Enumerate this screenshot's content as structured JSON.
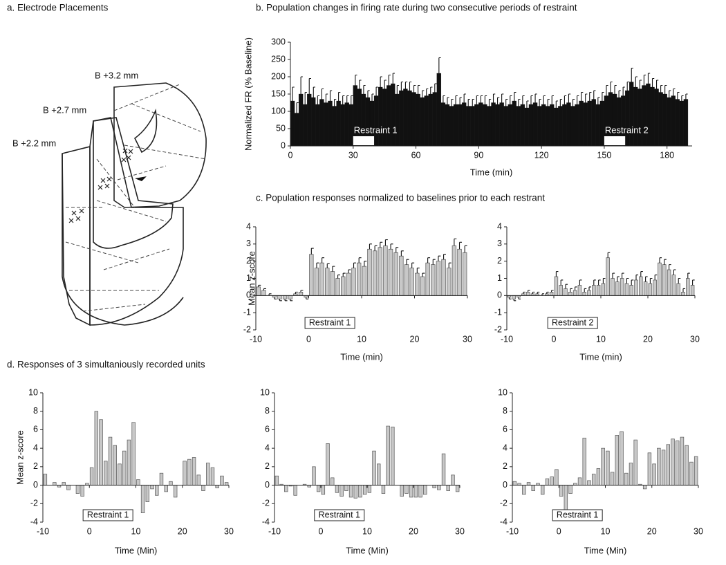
{
  "diagram": {
    "title": "a.  Electrode Placements",
    "labels": [
      "B +3.2 mm",
      "B +2.7 mm",
      "B +2.2 mm"
    ]
  },
  "chart_data": [
    {
      "type": "histogram",
      "title": "b.  Population changes in firing rate during two consecutive periods of restraint",
      "xlabel": "Time (min)",
      "ylabel": "Normalized FR (% Baseline)",
      "color": "#111111",
      "bins": [
        0,
        2,
        4,
        6,
        8,
        10,
        12,
        14,
        16,
        18,
        20,
        22,
        24,
        26,
        28,
        30,
        32,
        34,
        36,
        38,
        40,
        42,
        44,
        46,
        48,
        50,
        52,
        54,
        56,
        58,
        60,
        62,
        64,
        66,
        68,
        70,
        72,
        74,
        76,
        78,
        80,
        82,
        84,
        86,
        88,
        90,
        92,
        94,
        96,
        98,
        100,
        102,
        104,
        106,
        108,
        110,
        112,
        114,
        116,
        118,
        120,
        122,
        124,
        126,
        128,
        130,
        132,
        134,
        136,
        138,
        140,
        142,
        144,
        146,
        148,
        150,
        152,
        154,
        156,
        158,
        160,
        162,
        164,
        166,
        168,
        170,
        172,
        174,
        176,
        178,
        180,
        182,
        184,
        186,
        188,
        190
      ],
      "values": [
        130,
        95,
        150,
        120,
        150,
        140,
        120,
        135,
        125,
        130,
        115,
        130,
        120,
        125,
        120,
        175,
        165,
        150,
        140,
        130,
        145,
        170,
        165,
        175,
        180,
        150,
        160,
        165,
        160,
        155,
        150,
        140,
        145,
        150,
        155,
        210,
        125,
        120,
        115,
        120,
        120,
        125,
        115,
        115,
        120,
        125,
        120,
        115,
        125,
        120,
        125,
        115,
        120,
        130,
        115,
        120,
        110,
        120,
        125,
        115,
        120,
        115,
        120,
        110,
        115,
        120,
        125,
        115,
        120,
        130,
        125,
        130,
        135,
        120,
        130,
        145,
        155,
        150,
        140,
        145,
        160,
        185,
        170,
        165,
        175,
        180,
        170,
        165,
        155,
        150,
        140,
        145,
        135,
        130,
        135
      ],
      "errors": [
        40,
        30,
        50,
        35,
        45,
        30,
        25,
        30,
        25,
        30,
        20,
        25,
        25,
        20,
        25,
        30,
        25,
        25,
        20,
        20,
        25,
        30,
        25,
        30,
        30,
        25,
        25,
        20,
        25,
        20,
        25,
        20,
        20,
        20,
        25,
        45,
        20,
        20,
        20,
        25,
        20,
        25,
        20,
        20,
        25,
        20,
        25,
        20,
        25,
        20,
        25,
        20,
        25,
        25,
        20,
        25,
        20,
        25,
        25,
        20,
        25,
        20,
        25,
        20,
        20,
        25,
        25,
        20,
        25,
        25,
        25,
        25,
        25,
        20,
        25,
        30,
        30,
        25,
        20,
        25,
        25,
        40,
        30,
        25,
        30,
        30,
        25,
        25,
        20,
        25,
        20,
        20,
        20,
        15,
        15
      ],
      "annotations": [
        {
          "label": "Restraint 1",
          "span": [
            30,
            40
          ]
        },
        {
          "label": "Restraint 2",
          "span": [
            150,
            160
          ]
        }
      ],
      "xlim": [
        0,
        192
      ],
      "xticks": [
        0,
        30,
        60,
        90,
        120,
        150,
        180
      ],
      "ylim": [
        0,
        300
      ],
      "yticks": [
        0,
        50,
        100,
        150,
        200,
        250,
        300
      ]
    },
    {
      "type": "histogram",
      "title": "c.  Population responses normalized to baselines prior to each restrant",
      "xlabel": "Time (min)",
      "ylabel": "Mean z-score",
      "color": "#c8c8c8",
      "annotation": "Restraint 1",
      "bins": [
        -10,
        -9,
        -8,
        -7,
        -6,
        -5,
        -4,
        -3,
        -2,
        -1,
        0,
        1,
        2,
        3,
        4,
        5,
        6,
        7,
        8,
        9,
        10,
        11,
        12,
        13,
        14,
        15,
        16,
        17,
        18,
        19,
        20,
        21,
        22,
        23,
        24,
        25,
        26,
        27,
        28,
        29,
        30
      ],
      "values": [
        0.5,
        0.3,
        0,
        -0.1,
        -0.2,
        -0.2,
        -0.2,
        0.1,
        0.2,
        -0.1,
        2.4,
        1.6,
        1.9,
        1.6,
        1.4,
        1.0,
        1.1,
        1.3,
        1.6,
        1.9,
        1.7,
        2.7,
        2.6,
        2.8,
        2.9,
        2.7,
        2.5,
        2.3,
        1.8,
        1.6,
        1.3,
        1.1,
        1.9,
        1.8,
        2.0,
        2.1,
        1.6,
        2.9,
        2.7,
        2.5
      ],
      "errors": [
        0.1,
        0.1,
        0.1,
        0.1,
        0.1,
        0.1,
        0.1,
        0.1,
        0.1,
        0.1,
        0.35,
        0.3,
        0.3,
        0.25,
        0.3,
        0.2,
        0.2,
        0.2,
        0.3,
        0.3,
        0.3,
        0.3,
        0.3,
        0.3,
        0.35,
        0.3,
        0.3,
        0.3,
        0.3,
        0.3,
        0.3,
        0.2,
        0.3,
        0.3,
        0.3,
        0.3,
        0.3,
        0.4,
        0.4,
        0.4
      ],
      "xlim": [
        -10,
        30
      ],
      "xticks": [
        -10,
        0,
        10,
        20,
        30
      ],
      "ylim": [
        -2,
        4
      ],
      "yticks": [
        -2,
        -1,
        0,
        1,
        2,
        3,
        4
      ]
    },
    {
      "type": "histogram",
      "xlabel": "Time (min)",
      "color": "#c8c8c8",
      "annotation": "Restraint 2",
      "bins": [
        -10,
        -9,
        -8,
        -7,
        -6,
        -5,
        -4,
        -3,
        -2,
        -1,
        0,
        1,
        2,
        3,
        4,
        5,
        6,
        7,
        8,
        9,
        10,
        11,
        12,
        13,
        14,
        15,
        16,
        17,
        18,
        19,
        20,
        21,
        22,
        23,
        24,
        25,
        26,
        27,
        28,
        29,
        30
      ],
      "values": [
        -0.1,
        -0.2,
        -0.1,
        0.1,
        0.2,
        0.1,
        0.1,
        0,
        0.1,
        0.2,
        1.1,
        0.6,
        0.4,
        0.2,
        0.3,
        0.6,
        0.2,
        0.3,
        0.6,
        0.6,
        0.7,
        2.2,
        1.0,
        0.8,
        1.0,
        0.7,
        0.6,
        0.9,
        1.1,
        0.8,
        0.7,
        0.9,
        1.9,
        1.8,
        1.5,
        1.2,
        0.7,
        0.2,
        1.0,
        0.6
      ],
      "errors": [
        0.1,
        0.1,
        0.1,
        0.1,
        0.1,
        0.1,
        0.1,
        0.1,
        0.1,
        0.1,
        0.3,
        0.3,
        0.25,
        0.2,
        0.2,
        0.3,
        0.2,
        0.2,
        0.3,
        0.3,
        0.3,
        0.3,
        0.3,
        0.3,
        0.3,
        0.3,
        0.3,
        0.3,
        0.3,
        0.3,
        0.3,
        0.3,
        0.3,
        0.3,
        0.3,
        0.3,
        0.3,
        0.2,
        0.3,
        0.3
      ],
      "xlim": [
        -10,
        30
      ],
      "xticks": [
        -10,
        0,
        10,
        20,
        30
      ],
      "ylim": [
        -2,
        4
      ],
      "yticks": [
        -2,
        -1,
        0,
        1,
        2,
        3,
        4
      ]
    },
    {
      "type": "histogram",
      "title": "d.  Responses of 3 simultaniously recorded units",
      "xlabel": "Time (Min)",
      "ylabel": "Mean z-score",
      "color": "#c8c8c8",
      "annotation": "Restraint 1",
      "bins": [
        -10,
        -9,
        -8,
        -7,
        -6,
        -5,
        -4,
        -3,
        -2,
        -1,
        0,
        1,
        2,
        3,
        4,
        5,
        6,
        7,
        8,
        9,
        10,
        11,
        12,
        13,
        14,
        15,
        16,
        17,
        18,
        19,
        20,
        21,
        22,
        23,
        24,
        25,
        26,
        27,
        28,
        29,
        30
      ],
      "values": [
        1.2,
        0,
        0.3,
        -0.2,
        0.3,
        -0.5,
        0,
        -0.9,
        -1.2,
        0.2,
        1.9,
        8.0,
        7.1,
        2.6,
        5.2,
        4.3,
        2.3,
        3.7,
        4.9,
        6.8,
        0.6,
        -3.0,
        -1.8,
        -0.4,
        -1.1,
        1.3,
        -0.7,
        0.4,
        -1.3,
        0,
        2.6,
        2.8,
        3.0,
        1.1,
        -0.6,
        2.4,
        1.9,
        -0.3,
        1.0,
        0.3
      ],
      "xlim": [
        -10,
        30
      ],
      "xticks": [
        -10,
        0,
        10,
        20,
        30
      ],
      "ylim": [
        -4,
        10
      ],
      "yticks": [
        -4,
        -2,
        0,
        2,
        4,
        6,
        8,
        10
      ]
    },
    {
      "type": "histogram",
      "xlabel": "Time (Min)",
      "color": "#c8c8c8",
      "annotation": "Restraint 1",
      "bins": [
        -10,
        -9,
        -8,
        -7,
        -6,
        -5,
        -4,
        -3,
        -2,
        -1,
        0,
        1,
        2,
        3,
        4,
        5,
        6,
        7,
        8,
        9,
        10,
        11,
        12,
        13,
        14,
        15,
        16,
        17,
        18,
        19,
        20,
        21,
        22,
        23,
        24,
        25,
        26,
        27,
        28,
        29,
        30
      ],
      "values": [
        1.0,
        0.1,
        -0.7,
        -0.1,
        -1.1,
        0,
        0.1,
        -0.2,
        2.0,
        -0.7,
        -1.0,
        4.5,
        0.8,
        -0.8,
        -1.2,
        -0.6,
        -1.3,
        -1.4,
        -1.3,
        -1.0,
        -0.8,
        3.7,
        2.3,
        -0.9,
        6.4,
        6.3,
        0,
        -1.2,
        -0.9,
        -1.3,
        -1.3,
        -1.3,
        -1.0,
        0,
        -0.3,
        -0.5,
        3.4,
        -0.6,
        1.1,
        -0.7
      ],
      "xlim": [
        -10,
        30
      ],
      "xticks": [
        -10,
        0,
        10,
        20,
        30
      ],
      "ylim": [
        -4,
        10
      ],
      "yticks": [
        -4,
        -2,
        0,
        2,
        4,
        6,
        8,
        10
      ]
    },
    {
      "type": "histogram",
      "xlabel": "Time (Min)",
      "color": "#c8c8c8",
      "annotation": "Restraint 1",
      "bins": [
        -10,
        -9,
        -8,
        -7,
        -6,
        -5,
        -4,
        -3,
        -2,
        -1,
        0,
        1,
        2,
        3,
        4,
        5,
        6,
        7,
        8,
        9,
        10,
        11,
        12,
        13,
        14,
        15,
        16,
        17,
        18,
        19,
        20,
        21,
        22,
        23,
        24,
        25,
        26,
        27,
        28,
        29,
        30
      ],
      "values": [
        0.4,
        0.2,
        -1.0,
        0.3,
        -0.6,
        0.2,
        -1.0,
        0.7,
        0.9,
        1.7,
        -1.2,
        -2.7,
        -0.9,
        0.2,
        0.8,
        5.1,
        0.5,
        1.2,
        1.8,
        4.0,
        3.7,
        1.4,
        5.4,
        5.8,
        1.3,
        2.4,
        4.9,
        0.1,
        -0.4,
        3.5,
        2.3,
        4.0,
        3.8,
        4.4,
        5.0,
        4.8,
        5.2,
        4.3,
        2.5,
        3.1
      ],
      "xlim": [
        -10,
        30
      ],
      "xticks": [
        -10,
        0,
        10,
        20,
        30
      ],
      "ylim": [
        -4,
        10
      ],
      "yticks": [
        -4,
        -2,
        0,
        2,
        4,
        6,
        8,
        10
      ]
    }
  ]
}
